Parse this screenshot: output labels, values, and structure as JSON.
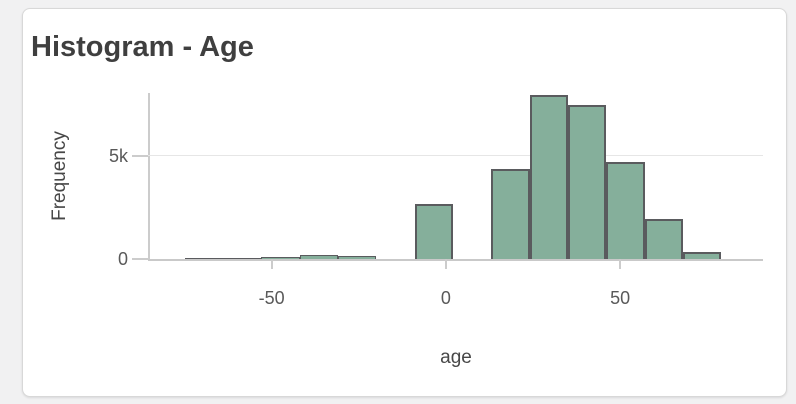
{
  "card": {
    "title": "Histogram - Age"
  },
  "chart_data": {
    "type": "bar",
    "subtype": "histogram",
    "title": "Histogram - Age",
    "xlabel": "age",
    "ylabel": "Frequency",
    "xlim": [
      -85.5,
      91
    ],
    "ylim": [
      0,
      8050
    ],
    "grid": "horizontal-only",
    "legend": "none",
    "x_ticks": [
      {
        "value": -50,
        "label": "-50"
      },
      {
        "value": 0,
        "label": "0"
      },
      {
        "value": 50,
        "label": "50"
      }
    ],
    "y_ticks": [
      {
        "value": 0,
        "label": "0"
      },
      {
        "value": 5000,
        "label": "5k"
      }
    ],
    "bin_width": 11,
    "bins": [
      {
        "start": -75,
        "end": -64,
        "count": 40
      },
      {
        "start": -64,
        "end": -53,
        "count": 70
      },
      {
        "start": -53,
        "end": -42,
        "count": 120
      },
      {
        "start": -42,
        "end": -31,
        "count": 180
      },
      {
        "start": -31,
        "end": -20,
        "count": 170
      },
      {
        "start": -20,
        "end": -9,
        "count": 0
      },
      {
        "start": -9,
        "end": 2,
        "count": 2670
      },
      {
        "start": 2,
        "end": 13,
        "count": 0
      },
      {
        "start": 13,
        "end": 24,
        "count": 4370
      },
      {
        "start": 24,
        "end": 35,
        "count": 7950
      },
      {
        "start": 35,
        "end": 46,
        "count": 7490
      },
      {
        "start": 46,
        "end": 57,
        "count": 4710
      },
      {
        "start": 57,
        "end": 68,
        "count": 1930
      },
      {
        "start": 68,
        "end": 79,
        "count": 360
      },
      {
        "start": 79,
        "end": 90,
        "count": 0
      }
    ],
    "colors": {
      "bar_fill": "#85af9b",
      "bar_border": "#5a5b5e",
      "gridline": "#e6e6e6",
      "axis_line": "#c9c9c9",
      "tick_label": "#595959",
      "axis_title": "#474747",
      "card_title": "#3f3f3f",
      "card_background": "#ffffff",
      "page_background": "#f1f1f2"
    }
  }
}
